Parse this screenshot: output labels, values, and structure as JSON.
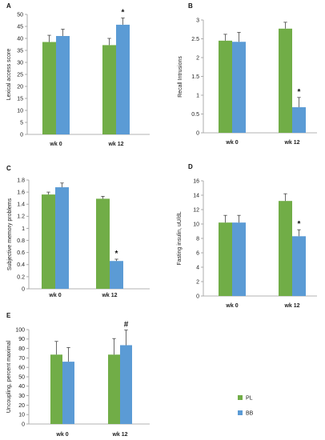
{
  "colors": {
    "PL": "#71ad47",
    "BB": "#5b9bd5"
  },
  "legend": {
    "items": [
      {
        "key": "PL",
        "label": "PL"
      },
      {
        "key": "BB",
        "label": "BB"
      }
    ]
  },
  "chart_data": [
    {
      "id": "A",
      "type": "bar",
      "panel_label": "A",
      "ylabel": "Lexical access score",
      "ylim": [
        0,
        50
      ],
      "yticks": [
        0,
        5,
        10,
        15,
        20,
        25,
        30,
        35,
        40,
        45,
        50
      ],
      "categories": [
        "wk 0",
        "wk 12"
      ],
      "series": [
        {
          "key": "PL",
          "values": [
            38.5,
            37.2
          ],
          "errors": [
            2.8,
            2.8
          ]
        },
        {
          "key": "BB",
          "values": [
            41.0,
            45.7
          ],
          "errors": [
            2.8,
            2.8
          ]
        }
      ],
      "annotations": [
        {
          "category": 1,
          "series": "BB",
          "text": "*"
        }
      ]
    },
    {
      "id": "B",
      "type": "bar",
      "panel_label": "B",
      "ylabel": "Recall Intrusions",
      "ylim": [
        0,
        3
      ],
      "yticks": [
        0,
        0.5,
        1,
        1.5,
        2,
        2.5,
        3
      ],
      "categories": [
        "wk 0",
        "wk 12"
      ],
      "series": [
        {
          "key": "PL",
          "values": [
            2.45,
            2.77
          ],
          "errors": [
            0.17,
            0.17
          ]
        },
        {
          "key": "BB",
          "values": [
            2.42,
            0.68
          ],
          "errors": [
            0.25,
            0.26
          ]
        }
      ],
      "annotations": [
        {
          "category": 1,
          "series": "BB",
          "text": "*"
        }
      ]
    },
    {
      "id": "C",
      "type": "bar",
      "panel_label": "C",
      "ylabel": "Subjective memory problems",
      "ylim": [
        0,
        1.8
      ],
      "yticks": [
        0,
        0.2,
        0.4,
        0.6,
        0.8,
        1,
        1.2,
        1.4,
        1.6,
        1.8
      ],
      "categories": [
        "wk 0",
        "wk 12"
      ],
      "series": [
        {
          "key": "PL",
          "values": [
            1.56,
            1.49
          ],
          "errors": [
            0.04,
            0.04
          ]
        },
        {
          "key": "BB",
          "values": [
            1.68,
            0.46
          ],
          "errors": [
            0.07,
            0.03
          ]
        }
      ],
      "annotations": [
        {
          "category": 1,
          "series": "BB",
          "text": "*"
        }
      ]
    },
    {
      "id": "D",
      "type": "bar",
      "panel_label": "D",
      "ylabel": "Fasting insulin, uU/dL",
      "ylim": [
        0,
        16
      ],
      "yticks": [
        0,
        2,
        4,
        6,
        8,
        10,
        12,
        14,
        16
      ],
      "categories": [
        "wk 0",
        "wk 12"
      ],
      "series": [
        {
          "key": "PL",
          "values": [
            10.2,
            13.2
          ],
          "errors": [
            1.0,
            1.0
          ]
        },
        {
          "key": "BB",
          "values": [
            10.2,
            8.3
          ],
          "errors": [
            1.0,
            0.9
          ]
        }
      ],
      "annotations": [
        {
          "category": 1,
          "series": "BB",
          "text": "*"
        }
      ]
    },
    {
      "id": "E",
      "type": "bar",
      "panel_label": "E",
      "ylabel": "Uncoupling, percent maximal",
      "ylim": [
        0,
        100
      ],
      "yticks": [
        0,
        10,
        20,
        30,
        40,
        50,
        60,
        70,
        80,
        90,
        100
      ],
      "categories": [
        "wk 0",
        "wk 12"
      ],
      "series": [
        {
          "key": "PL",
          "values": [
            73.5,
            73.5
          ],
          "errors": [
            14,
            17
          ]
        },
        {
          "key": "BB",
          "values": [
            66.0,
            83.5
          ],
          "errors": [
            15,
            16
          ]
        }
      ],
      "annotations": [
        {
          "category": 1,
          "series": "BB",
          "text": "#"
        }
      ]
    }
  ]
}
